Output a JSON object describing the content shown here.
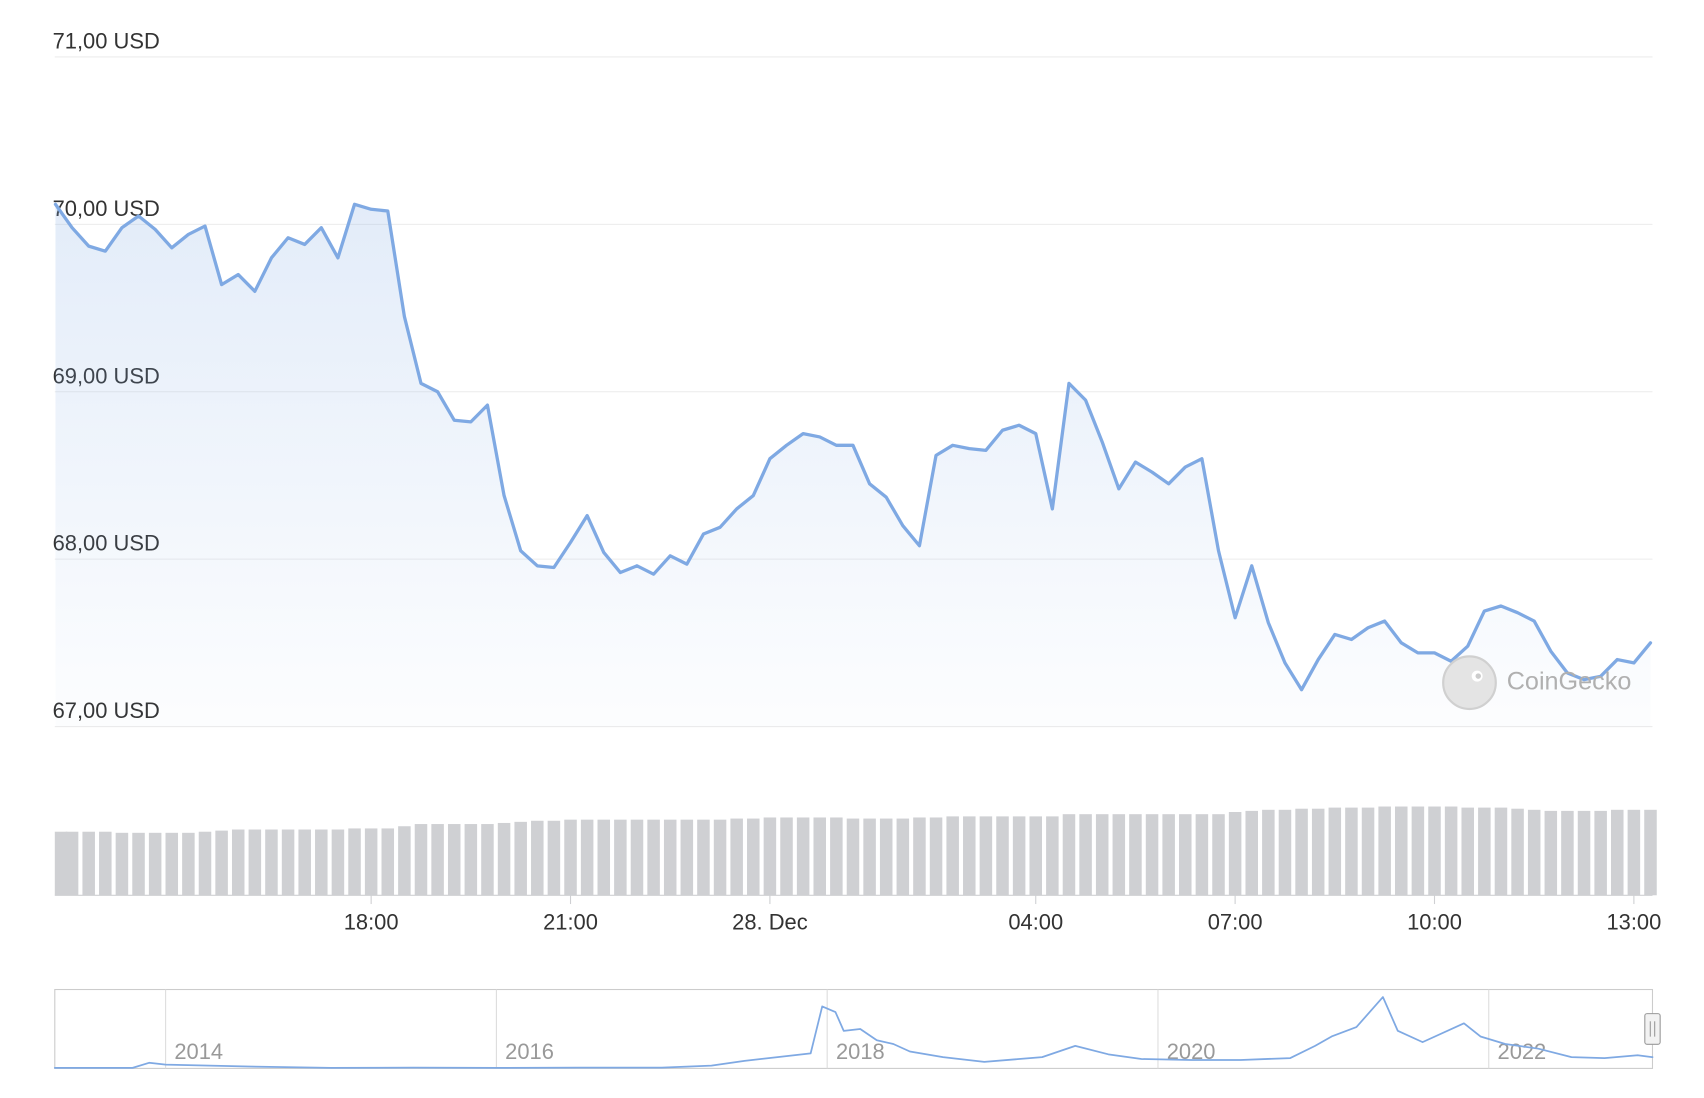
{
  "chart_data": [
    {
      "type": "line",
      "color": "#7fa9e3",
      "volume_color": "#cfd0d3",
      "watermark": "CoinGecko",
      "grid": true,
      "xlim": [
        13.24,
        37.28
      ],
      "xticks": [
        {
          "value": 18,
          "label": "18:00"
        },
        {
          "value": 21,
          "label": "21:00"
        },
        {
          "value": 24,
          "label": "28. Dec"
        },
        {
          "value": 28,
          "label": "04:00"
        },
        {
          "value": 31,
          "label": "07:00"
        },
        {
          "value": 34,
          "label": "10:00"
        },
        {
          "value": 37,
          "label": "13:00"
        }
      ],
      "ylim": [
        67,
        71
      ],
      "yticks": [
        {
          "value": 67,
          "label": "67,00 USD"
        },
        {
          "value": 68,
          "label": "68,00 USD"
        },
        {
          "value": 69,
          "label": "69,00 USD"
        },
        {
          "value": 70,
          "label": "70,00 USD"
        },
        {
          "value": 71,
          "label": "71,00 USD"
        }
      ],
      "x": [
        13.25,
        13.5,
        13.75,
        14,
        14.25,
        14.5,
        14.75,
        15,
        15.25,
        15.5,
        15.75,
        16,
        16.25,
        16.5,
        16.75,
        17,
        17.25,
        17.5,
        17.75,
        18,
        18.25,
        18.5,
        18.75,
        19,
        19.25,
        19.5,
        19.75,
        20,
        20.25,
        20.5,
        20.75,
        21,
        21.25,
        21.5,
        21.75,
        22,
        22.25,
        22.5,
        22.75,
        23,
        23.25,
        23.5,
        23.75,
        24,
        24.25,
        24.5,
        24.75,
        25,
        25.25,
        25.5,
        25.75,
        26,
        26.25,
        26.5,
        26.75,
        27,
        27.25,
        27.5,
        27.75,
        28,
        28.25,
        28.5,
        28.75,
        29,
        29.25,
        29.5,
        29.75,
        30,
        30.25,
        30.5,
        30.75,
        31,
        31.25,
        31.5,
        31.75,
        32,
        32.25,
        32.5,
        32.75,
        33,
        33.25,
        33.5,
        33.75,
        34,
        34.25,
        34.5,
        34.75,
        35,
        35.25,
        35.5,
        35.75,
        36,
        36.25,
        36.5,
        36.75,
        37,
        37.25
      ],
      "values": [
        70.12,
        69.98,
        69.87,
        69.84,
        69.98,
        70.05,
        69.97,
        69.86,
        69.94,
        69.99,
        69.64,
        69.7,
        69.6,
        69.8,
        69.92,
        69.88,
        69.98,
        69.8,
        70.12,
        70.09,
        70.08,
        69.45,
        69.05,
        69,
        68.83,
        68.82,
        68.92,
        68.38,
        68.05,
        67.96,
        67.95,
        68.1,
        68.26,
        68.04,
        67.92,
        67.96,
        67.91,
        68.02,
        67.97,
        68.15,
        68.19,
        68.3,
        68.38,
        68.6,
        68.68,
        68.75,
        68.73,
        68.68,
        68.68,
        68.45,
        68.37,
        68.2,
        68.08,
        68.62,
        68.68,
        68.66,
        68.65,
        68.77,
        68.8,
        68.75,
        68.3,
        69.05,
        68.95,
        68.7,
        68.42,
        68.58,
        68.52,
        68.45,
        68.55,
        68.6,
        68.05,
        67.65,
        67.96,
        67.62,
        67.38,
        67.22,
        67.4,
        67.55,
        67.52,
        67.59,
        67.63,
        67.5,
        67.44,
        67.44,
        67.39,
        67.48,
        67.69,
        67.72,
        67.68,
        67.63,
        67.45,
        67.32,
        67.28,
        67.3,
        67.4,
        67.38,
        67.5
      ],
      "volume_ylim": [
        0,
        100
      ],
      "volumes": [
        58,
        58,
        58,
        58,
        57,
        57,
        57,
        57,
        57,
        58,
        59,
        60,
        60,
        60,
        60,
        60,
        60,
        60,
        61,
        61,
        61,
        63,
        65,
        65,
        65,
        65,
        65,
        66,
        67,
        68,
        68,
        69,
        69,
        69,
        69,
        69,
        69,
        69,
        69,
        69,
        69,
        70,
        70,
        71,
        71,
        71,
        71,
        71,
        70,
        70,
        70,
        70,
        71,
        71,
        72,
        72,
        72,
        72,
        72,
        72,
        72,
        74,
        74,
        74,
        74,
        74,
        74,
        74,
        74,
        74,
        74,
        76,
        77,
        78,
        78,
        79,
        79,
        80,
        80,
        80,
        81,
        81,
        81,
        81,
        81,
        80,
        80,
        80,
        79,
        78,
        77,
        77,
        77,
        77,
        78,
        78,
        78
      ]
    },
    {
      "type": "line",
      "color": "#7fa9e3",
      "xlim": [
        2013.33,
        2022.99
      ],
      "ylim": [
        0,
        420
      ],
      "xticks": [
        2014,
        2016,
        2018,
        2020,
        2022
      ],
      "x": [
        2013.33,
        2013.8,
        2013.9,
        2014,
        2014.5,
        2015,
        2015.5,
        2016,
        2016.5,
        2017,
        2017.3,
        2017.5,
        2017.7,
        2017.9,
        2017.97,
        2018.05,
        2018.1,
        2018.2,
        2018.3,
        2018.4,
        2018.5,
        2018.7,
        2018.95,
        2019.3,
        2019.5,
        2019.7,
        2019.9,
        2020.2,
        2020.5,
        2020.8,
        2020.95,
        2021.05,
        2021.2,
        2021.36,
        2021.45,
        2021.6,
        2021.85,
        2021.95,
        2022.1,
        2022.3,
        2022.5,
        2022.7,
        2022.9,
        2022.99
      ],
      "values": [
        3,
        3,
        30,
        20,
        10,
        3,
        4,
        3,
        4,
        4,
        15,
        40,
        60,
        80,
        330,
        300,
        200,
        210,
        150,
        130,
        90,
        60,
        35,
        60,
        120,
        75,
        50,
        45,
        45,
        55,
        120,
        170,
        220,
        380,
        200,
        140,
        240,
        170,
        130,
        105,
        60,
        55,
        70,
        60
      ]
    }
  ]
}
